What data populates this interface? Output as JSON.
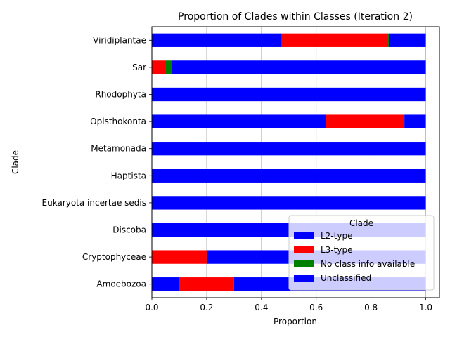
{
  "chart_data": {
    "type": "bar",
    "orientation": "horizontal",
    "stacked": true,
    "title": "Proportion of Clades within Classes (Iteration 2)",
    "xlabel": "Proportion",
    "ylabel": "Clade",
    "xlim": [
      0,
      1.05
    ],
    "xticks": [
      "0.0",
      "0.2",
      "0.4",
      "0.6",
      "0.8",
      "1.0"
    ],
    "grid": "x",
    "legend": {
      "title": "Clade",
      "placement": "lower-right"
    },
    "categories": [
      "Amoebozoa",
      "Cryptophyceae",
      "Discoba",
      "Eukaryota incertae sedis",
      "Haptista",
      "Metamonada",
      "Opisthokonta",
      "Rhodophyta",
      "Sar",
      "Viridiplantae"
    ],
    "series": [
      {
        "name": "L2-type",
        "color": "#0000ff",
        "values": [
          0.1,
          0.0,
          1.0,
          1.0,
          1.0,
          1.0,
          0.636,
          1.0,
          0.0,
          0.474
        ]
      },
      {
        "name": "L3-type",
        "color": "#ff0000",
        "values": [
          0.2,
          0.2,
          0.0,
          0.0,
          0.0,
          0.0,
          0.286,
          0.0,
          0.05,
          0.386
        ]
      },
      {
        "name": "No class info available",
        "color": "#008000",
        "values": [
          0.0,
          0.0,
          0.0,
          0.0,
          0.0,
          0.0,
          0.0,
          0.0,
          0.022,
          0.005
        ]
      },
      {
        "name": "Unclassified",
        "color": "#0000ff",
        "values": [
          0.7,
          0.8,
          0.0,
          0.0,
          0.0,
          0.0,
          0.078,
          0.0,
          0.928,
          0.135
        ]
      }
    ]
  }
}
